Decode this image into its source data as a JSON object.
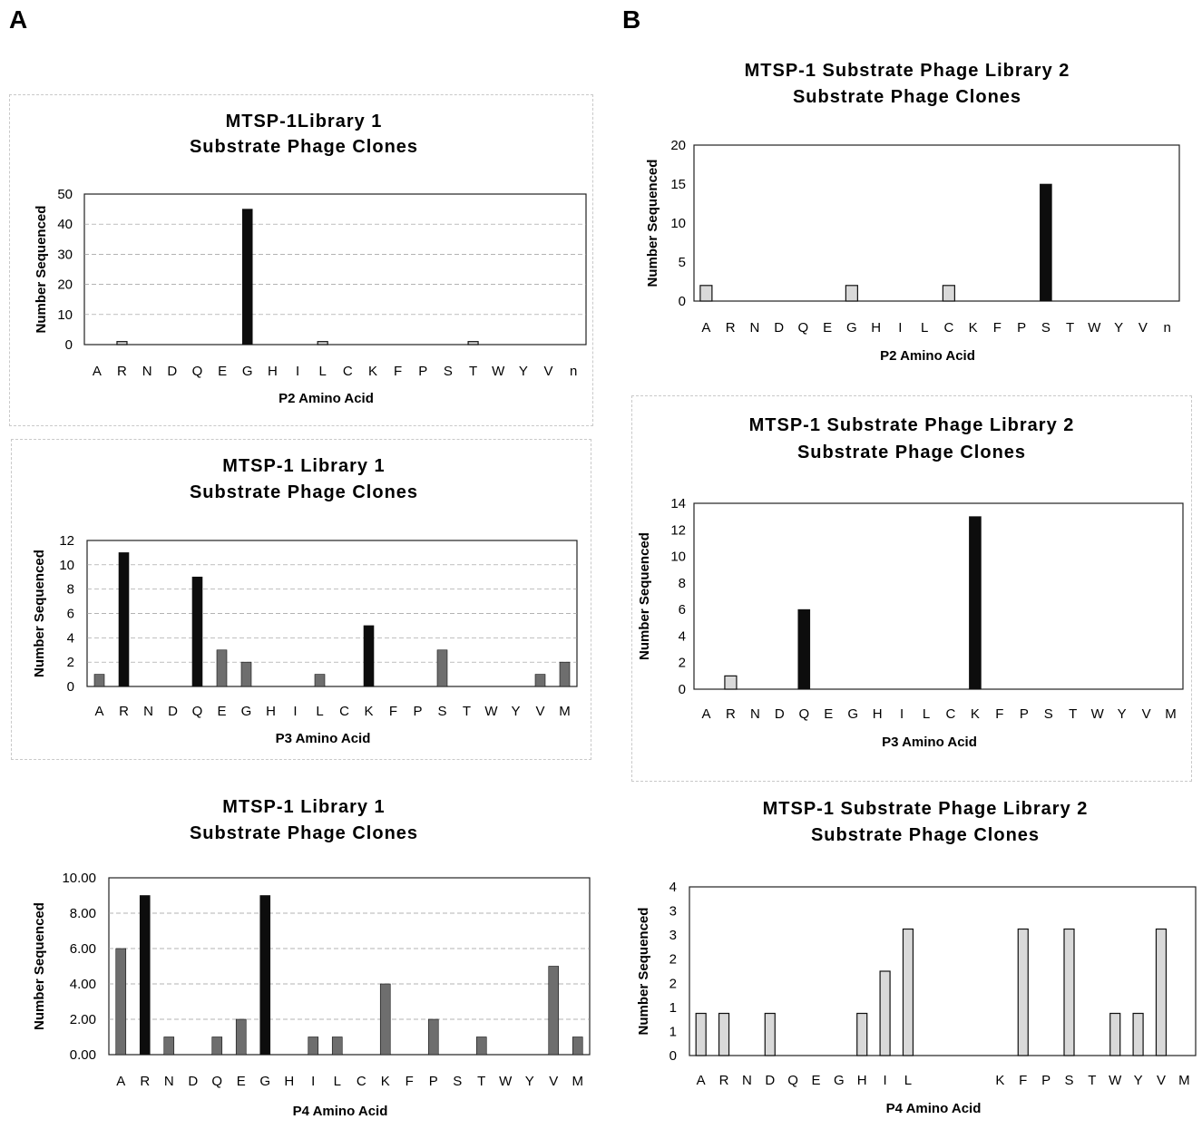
{
  "panels": {
    "left": "A",
    "right": "B"
  },
  "colors": {
    "dark": "#0d0d0d",
    "gray": "#6e6e6e",
    "light": "#d9d9d9",
    "grid": "#9a9a9a"
  },
  "chart_data": [
    {
      "panel": "A",
      "type": "bar",
      "title": [
        "MTSP-1Library 1",
        "Substrate Phage Clones"
      ],
      "xlabel": "P2 Amino Acid",
      "ylabel": "Number Sequenced",
      "ylim": [
        0,
        50
      ],
      "yticks": [
        "0",
        "10",
        "20",
        "30",
        "40",
        "50"
      ],
      "grid": true,
      "categories": [
        "A",
        "R",
        "N",
        "D",
        "Q",
        "E",
        "G",
        "H",
        "I",
        "L",
        "C",
        "K",
        "F",
        "P",
        "S",
        "T",
        "W",
        "Y",
        "V",
        "n"
      ],
      "values": [
        0,
        1,
        0,
        0,
        0,
        0,
        45,
        0,
        0,
        1,
        0,
        0,
        0,
        0,
        0,
        1,
        0,
        0,
        0,
        0
      ],
      "bar_styles": [
        "",
        "light",
        "",
        "",
        "",
        "",
        "dark",
        "",
        "",
        "light",
        "",
        "",
        "",
        "",
        "",
        "light",
        "",
        "",
        "",
        ""
      ]
    },
    {
      "panel": "A",
      "type": "bar",
      "title": [
        "MTSP-1 Library 1",
        "Substrate Phage Clones"
      ],
      "xlabel": "P3 Amino Acid",
      "ylabel": "Number Sequenced",
      "ylim": [
        0,
        12
      ],
      "yticks": [
        "0",
        "2",
        "4",
        "6",
        "8",
        "10",
        "12"
      ],
      "grid": true,
      "categories": [
        "A",
        "R",
        "N",
        "D",
        "Q",
        "E",
        "G",
        "H",
        "I",
        "L",
        "C",
        "K",
        "F",
        "P",
        "S",
        "T",
        "W",
        "Y",
        "V",
        "M"
      ],
      "values": [
        1,
        11,
        0,
        0,
        9,
        3,
        2,
        0,
        0,
        1,
        0,
        5,
        0,
        0,
        3,
        0,
        0,
        0,
        1,
        2
      ],
      "bar_styles": [
        "gray",
        "dark",
        "",
        "",
        "dark",
        "gray",
        "gray",
        "",
        "",
        "gray",
        "",
        "dark",
        "",
        "",
        "gray",
        "",
        "",
        "",
        "gray",
        "gray"
      ]
    },
    {
      "panel": "A",
      "type": "bar",
      "title": [
        "MTSP-1 Library 1",
        "Substrate Phage Clones"
      ],
      "xlabel": "P4 Amino Acid",
      "ylabel": "Number Sequenced",
      "ylim": [
        0,
        10
      ],
      "yticks": [
        "0.00",
        "2.00",
        "4.00",
        "6.00",
        "8.00",
        "10.00"
      ],
      "grid": true,
      "categories": [
        "A",
        "R",
        "N",
        "D",
        "Q",
        "E",
        "G",
        "H",
        "I",
        "L",
        "C",
        "K",
        "F",
        "P",
        "S",
        "T",
        "W",
        "Y",
        "V",
        "M"
      ],
      "values": [
        6,
        9,
        1,
        0,
        1,
        2,
        9,
        0,
        1,
        1,
        0,
        4,
        0,
        2,
        0,
        1,
        0,
        0,
        5,
        1
      ],
      "bar_styles": [
        "gray",
        "dark",
        "gray",
        "",
        "gray",
        "gray",
        "dark",
        "",
        "gray",
        "gray",
        "",
        "gray",
        "",
        "gray",
        "",
        "gray",
        "",
        "",
        "gray",
        "gray"
      ]
    },
    {
      "panel": "B",
      "type": "bar",
      "title": [
        "MTSP-1 Substrate Phage Library 2",
        "Substrate Phage Clones"
      ],
      "xlabel": "P2 Amino Acid",
      "ylabel": "Number Sequenced",
      "ylim": [
        0,
        20
      ],
      "yticks": [
        "0",
        "5",
        "10",
        "15",
        "20"
      ],
      "grid": false,
      "categories": [
        "A",
        "R",
        "N",
        "D",
        "Q",
        "E",
        "G",
        "H",
        "I",
        "L",
        "C",
        "K",
        "F",
        "P",
        "S",
        "T",
        "W",
        "Y",
        "V",
        "n"
      ],
      "values": [
        2,
        0,
        0,
        0,
        0,
        0,
        2,
        0,
        0,
        0,
        2,
        0,
        0,
        0,
        15,
        0,
        0,
        0,
        0,
        0
      ],
      "bar_styles": [
        "light",
        "",
        "",
        "",
        "",
        "",
        "light",
        "",
        "",
        "",
        "light",
        "",
        "",
        "",
        "dark",
        "",
        "",
        "",
        "",
        ""
      ]
    },
    {
      "panel": "B",
      "type": "bar",
      "title": [
        "MTSP-1 Substrate Phage Library 2",
        "Substrate Phage Clones"
      ],
      "xlabel": "P3 Amino Acid",
      "ylabel": "Number Sequenced",
      "ylim": [
        0,
        14
      ],
      "yticks": [
        "0",
        "2",
        "4",
        "6",
        "8",
        "10",
        "12",
        "14"
      ],
      "grid": false,
      "categories": [
        "A",
        "R",
        "N",
        "D",
        "Q",
        "E",
        "G",
        "H",
        "I",
        "L",
        "C",
        "K",
        "F",
        "P",
        "S",
        "T",
        "W",
        "Y",
        "V",
        "M"
      ],
      "values": [
        0,
        1,
        0,
        0,
        6,
        0,
        0,
        0,
        0,
        0,
        0,
        13,
        0,
        0,
        0,
        0,
        0,
        0,
        0,
        0
      ],
      "bar_styles": [
        "",
        "light",
        "",
        "",
        "dark",
        "",
        "",
        "",
        "",
        "",
        "",
        "dark",
        "",
        "",
        "",
        "",
        "",
        "",
        "",
        ""
      ]
    },
    {
      "panel": "B",
      "type": "bar",
      "title": [
        "MTSP-1 Substrate Phage Library 2",
        "Substrate Phage Clones"
      ],
      "xlabel": "P4 Amino Acid",
      "ylabel": "Number Sequenced",
      "ylim": [
        0,
        4
      ],
      "yticks": [
        "0",
        "1",
        "1",
        "2",
        "2",
        "3",
        "3",
        "4"
      ],
      "grid": false,
      "categories": [
        "A",
        "R",
        "N",
        "D",
        "Q",
        "E",
        "G",
        "H",
        "I",
        "L",
        "",
        "",
        "",
        "K",
        "F",
        "P",
        "S",
        "T",
        "W",
        "Y",
        "V",
        "M"
      ],
      "values": [
        1,
        1,
        0,
        1,
        0,
        0,
        0,
        1,
        2,
        3,
        0,
        0,
        0,
        0,
        3,
        0,
        3,
        0,
        1,
        1,
        3,
        0
      ],
      "bar_styles": [
        "light",
        "light",
        "",
        "light",
        "",
        "",
        "",
        "light",
        "light",
        "light",
        "",
        "",
        "",
        "",
        "light",
        "",
        "light",
        "",
        "light",
        "light",
        "light",
        ""
      ]
    }
  ]
}
